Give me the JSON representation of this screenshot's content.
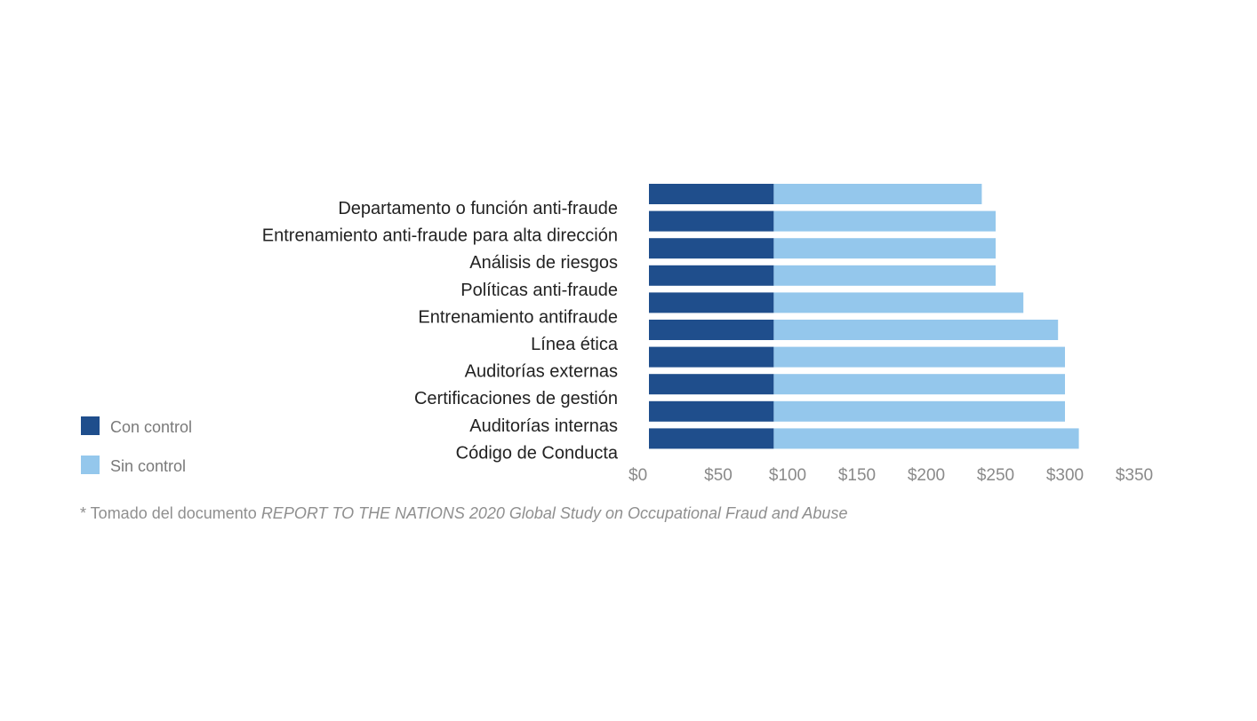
{
  "chart_data": {
    "type": "bar",
    "orientation": "horizontal",
    "stacked": true,
    "categories": [
      "Departamento o función anti-fraude",
      "Entrenamiento anti-fraude para alta dirección",
      "Análisis de riesgos",
      "Políticas anti-fraude",
      "Entrenamiento antifraude",
      "Línea ética",
      "Auditorías externas",
      "Certificaciones de gestión",
      "Auditorías internas",
      "Código de Conducta"
    ],
    "series": [
      {
        "name": "Con control",
        "color": "#1f4e8c",
        "values": [
          90,
          90,
          90,
          90,
          90,
          90,
          90,
          90,
          90,
          90
        ]
      },
      {
        "name": "Sin control",
        "color": "#94c7ec",
        "values": [
          150,
          160,
          160,
          160,
          180,
          205,
          210,
          210,
          210,
          220
        ]
      }
    ],
    "xticks": [
      "$0",
      "$50",
      "$100",
      "$150",
      "$200",
      "$250",
      "$300",
      "$350"
    ],
    "xlim": [
      0,
      350
    ],
    "grid": false,
    "legend_position": "bottom-left"
  },
  "footnote": {
    "prefix": "* Tomado del documento ",
    "source": "REPORT TO THE NATIONS 2020 Global Study on Occupational Fraud and Abuse"
  }
}
